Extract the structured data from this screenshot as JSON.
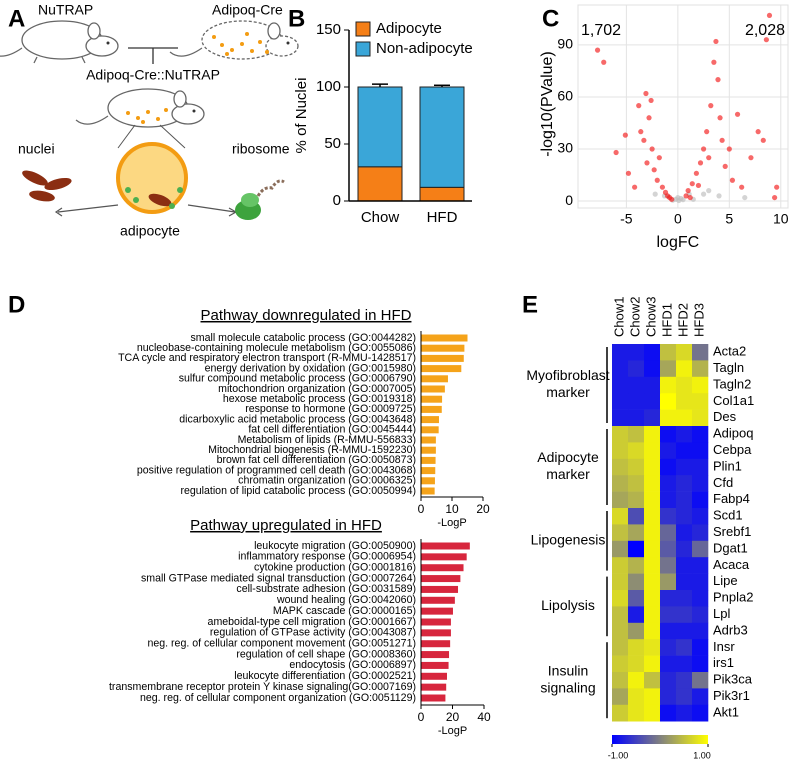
{
  "panel_labels": [
    "A",
    "B",
    "C",
    "D",
    "E"
  ],
  "diagram": {
    "mouse_left": "NuTRAP",
    "mouse_right": "Adipoq-Cre",
    "cross": "Adipoq-Cre::NuTRAP",
    "left": "nuclei",
    "right": "ribosome",
    "center": "adipocyte"
  },
  "chart_data": [
    {
      "type": "bar",
      "stacked": true,
      "ylabel": "% of Nuclei",
      "categories": [
        "Chow",
        "HFD"
      ],
      "ylim": [
        0,
        150
      ],
      "yticks": [
        0,
        50,
        100,
        150
      ],
      "legend": "top",
      "series": [
        {
          "name": "Adipocyte",
          "color": "#f57f17",
          "values": [
            30,
            12
          ],
          "errors": [
            2,
            1
          ]
        },
        {
          "name": "Non-adipocyte",
          "color": "#3aa6d8",
          "values": [
            70,
            88
          ],
          "errors": [
            2.5,
            1.5
          ]
        }
      ]
    },
    {
      "type": "scatter",
      "xlabel": "logFC",
      "ylabel": "-log10(PValue)",
      "xlim": [
        -9.7,
        10.7
      ],
      "ylim": [
        -4,
        113
      ],
      "xticks": [
        -5,
        0,
        5,
        10
      ],
      "yticks": [
        0,
        30,
        60,
        90
      ],
      "grid": true,
      "annotations": [
        {
          "text": "1,702",
          "color": "#f7a21b"
        },
        {
          "text": "2,028",
          "color": "#e8141b"
        }
      ],
      "series": [
        {
          "color": "#bdbdbd",
          "x": [
            -0.5,
            -0.2,
            0.1,
            0.3,
            0.5,
            -0.9,
            1.1,
            -1.3,
            2.5,
            3.0,
            4.0,
            -2.2,
            0.0,
            1.5,
            6.5
          ],
          "y": [
            0.5,
            1,
            0.3,
            1.5,
            0.8,
            2.5,
            4,
            3,
            4,
            6,
            3,
            4,
            2,
            1,
            2
          ]
        },
        {
          "color": "#f21818",
          "x": [
            -7.8,
            -7.2,
            -6.0,
            -5.1,
            -4.8,
            -4.2,
            -3.8,
            -3.6,
            -3.3,
            -3.0,
            -2.8,
            -2.5,
            -2.3,
            -2.0,
            -1.8,
            -1.5,
            -1.2,
            -1.0,
            -0.8,
            -2.6,
            -3.1,
            0.8,
            1.0,
            1.4,
            1.8,
            2.2,
            2.5,
            2.8,
            3.0,
            3.2,
            3.5,
            3.7,
            3.9,
            4.1,
            4.3,
            4.6,
            5.0,
            5.3,
            5.8,
            6.2,
            7.1,
            7.8,
            8.3,
            8.6,
            8.9,
            9.4,
            9.6,
            2.0,
            1.2,
            -0.6
          ],
          "y": [
            87,
            80,
            28,
            38,
            16,
            8,
            55,
            40,
            35,
            22,
            48,
            30,
            18,
            12,
            25,
            8,
            5,
            3,
            2,
            58,
            62,
            3,
            6,
            10,
            16,
            22,
            30,
            40,
            25,
            55,
            80,
            92,
            70,
            48,
            35,
            20,
            30,
            12,
            50,
            8,
            25,
            40,
            35,
            93,
            107,
            2,
            8,
            9,
            2,
            1
          ]
        }
      ]
    },
    {
      "type": "barh",
      "title": "Pathway downregulated in HFD",
      "xlabel": "-LogP",
      "color": "#f5a31a",
      "xlim": [
        0,
        20
      ],
      "xticks": [
        0,
        10,
        20
      ],
      "categories": [
        "small molecule catabolic process (GO:0044282)",
        "nucleobase-containing molecule metabolism (GO:0055086)",
        "TCA cycle and respiratory electron transport (R-MMU-1428517)",
        "energy derivation by oxidation (GO:0015980)",
        "sulfur compound metabolic process (GO:0006790)",
        "mitochondrion organization (GO:0007005)",
        "hexose metabolic process (GO:0019318)",
        "response to hormone (GO:0009725)",
        "dicarboxylic acid metabolic process (GO:0043648)",
        "fat cell differentiation (GO:0045444)",
        "Metabolism of lipids (R-MMU-556833)",
        "Mitochondrial biogenesis (R-MMU-1592230)",
        "brown fat cell differentiation (GO:0050873)",
        "positive regulation of programmed cell death (GO:0043068)",
        "chromatin organization (GO:0006325)",
        "regulation of lipid catabolic process (GO:0050994)"
      ],
      "values": [
        15,
        14,
        13.8,
        13,
        8.7,
        7.7,
        6.8,
        6.7,
        5.8,
        5.7,
        4.8,
        4.8,
        4.7,
        4.6,
        4.5,
        4.4
      ]
    },
    {
      "type": "barh",
      "title": "Pathway upregulated in HFD",
      "xlabel": "-LogP",
      "color": "#d7263d",
      "xlim": [
        0,
        40
      ],
      "xticks": [
        0,
        20,
        40
      ],
      "categories": [
        "leukocyte migration (GO:0050900)",
        "inflammatory response (GO:0006954)",
        "cytokine production (GO:0001816)",
        "small GTPase mediated signal transduction (GO:0007264)",
        "cell-substrate adhesion (GO:0031589)",
        "wound healing (GO:0042060)",
        "MAPK cascade (GO:0000165)",
        "ameboidal-type cell migration (GO:0001667)",
        "regulation of GTPase activity (GO:0043087)",
        "neg. reg. of cellular component movement (GO:0051271)",
        "regulation of cell shape (GO:0008360)",
        "endocytosis (GO:0006897)",
        "leukocyte differentiation (GO:0002521)",
        "transmembrane receptor protein Y kinase signaling(GO:0007169)",
        "neg. reg. of cellular component organization (GO:0051129)"
      ],
      "values": [
        31,
        29,
        27,
        25,
        23.5,
        21.5,
        20.3,
        19,
        19,
        18.5,
        17.8,
        17.5,
        16.5,
        16,
        15.5
      ]
    },
    {
      "type": "heatmap",
      "columns": [
        "Chow1",
        "Chow2",
        "Chow3",
        "HFD1",
        "HFD2",
        "HFD3"
      ],
      "groups": [
        {
          "label": [
            "Myofibroblast",
            "marker"
          ],
          "genes": [
            "Acta2",
            "Tagln",
            "Tagln2",
            "Col1a1",
            "Des"
          ],
          "values": [
            [
              -0.8,
              -0.8,
              -0.9,
              0.5,
              0.7,
              -0.1
            ],
            [
              -0.8,
              -0.7,
              -0.9,
              0.3,
              0.9,
              0.4
            ],
            [
              -0.8,
              -0.8,
              -0.8,
              0.9,
              0.8,
              0.9
            ],
            [
              -0.8,
              -0.8,
              -0.8,
              1.0,
              0.8,
              0.8
            ],
            [
              -0.8,
              -0.8,
              -0.7,
              0.9,
              0.9,
              0.8
            ]
          ]
        },
        {
          "label": [
            "Adipocyte",
            "marker"
          ],
          "genes": [
            "Adipoq",
            "Cebpa",
            "Plin1",
            "Cfd",
            "Fabp4"
          ],
          "values": [
            [
              0.6,
              0.5,
              0.9,
              -0.9,
              -0.8,
              -0.9
            ],
            [
              0.6,
              0.7,
              0.9,
              -0.8,
              -0.9,
              -0.9
            ],
            [
              0.5,
              0.6,
              0.9,
              -0.9,
              -0.8,
              -0.8
            ],
            [
              0.4,
              0.5,
              0.9,
              -0.8,
              -0.7,
              -0.8
            ],
            [
              0.3,
              0.4,
              0.9,
              -0.8,
              -0.7,
              -0.9
            ]
          ]
        },
        {
          "label": [
            "Lipogenesis"
          ],
          "genes": [
            "Scd1",
            "Srebf1",
            "Dgat1",
            "Acaca"
          ],
          "values": [
            [
              0.7,
              -0.4,
              0.9,
              -0.6,
              -0.7,
              -0.8
            ],
            [
              0.5,
              0.3,
              0.9,
              -0.2,
              -0.8,
              -0.7
            ],
            [
              0.2,
              -1.0,
              0.9,
              -0.3,
              -0.7,
              -0.2
            ],
            [
              0.6,
              0.4,
              0.9,
              -0.1,
              -0.8,
              -0.8
            ]
          ]
        },
        {
          "label": [
            "Lipolysis"
          ],
          "genes": [
            "Lipe",
            "Pnpla2",
            "Lpl",
            "Adrb3"
          ],
          "values": [
            [
              0.6,
              0.1,
              0.9,
              0.2,
              -0.8,
              -0.8
            ],
            [
              0.7,
              -0.3,
              0.9,
              -0.7,
              -0.7,
              -0.8
            ],
            [
              0.5,
              -0.8,
              0.9,
              -0.6,
              -0.6,
              -0.7
            ],
            [
              0.5,
              0.2,
              0.9,
              -0.8,
              -0.8,
              -0.8
            ]
          ]
        },
        {
          "label": [
            "Insulin",
            "signaling"
          ],
          "genes": [
            "Insr",
            "irs1",
            "Pik3ca",
            "Pik3r1",
            "Akt1"
          ],
          "values": [
            [
              0.5,
              0.7,
              0.8,
              -0.7,
              -0.6,
              -0.9
            ],
            [
              0.6,
              0.7,
              0.9,
              -0.8,
              -0.8,
              -0.9
            ],
            [
              0.5,
              0.9,
              0.5,
              -0.7,
              -0.6,
              -0.1
            ],
            [
              0.3,
              0.8,
              0.9,
              -0.7,
              -0.6,
              -0.8
            ],
            [
              0.6,
              0.8,
              0.9,
              -0.9,
              -0.8,
              -0.9
            ]
          ]
        }
      ],
      "colorbar": {
        "lim": [
          -1,
          1
        ],
        "colors": [
          "#0000ff",
          "#808080",
          "#ffff00"
        ],
        "ticks": [
          {
            "value": -1,
            "label": "-1.00"
          },
          {
            "value": 1,
            "label": "1.00"
          }
        ]
      }
    }
  ]
}
